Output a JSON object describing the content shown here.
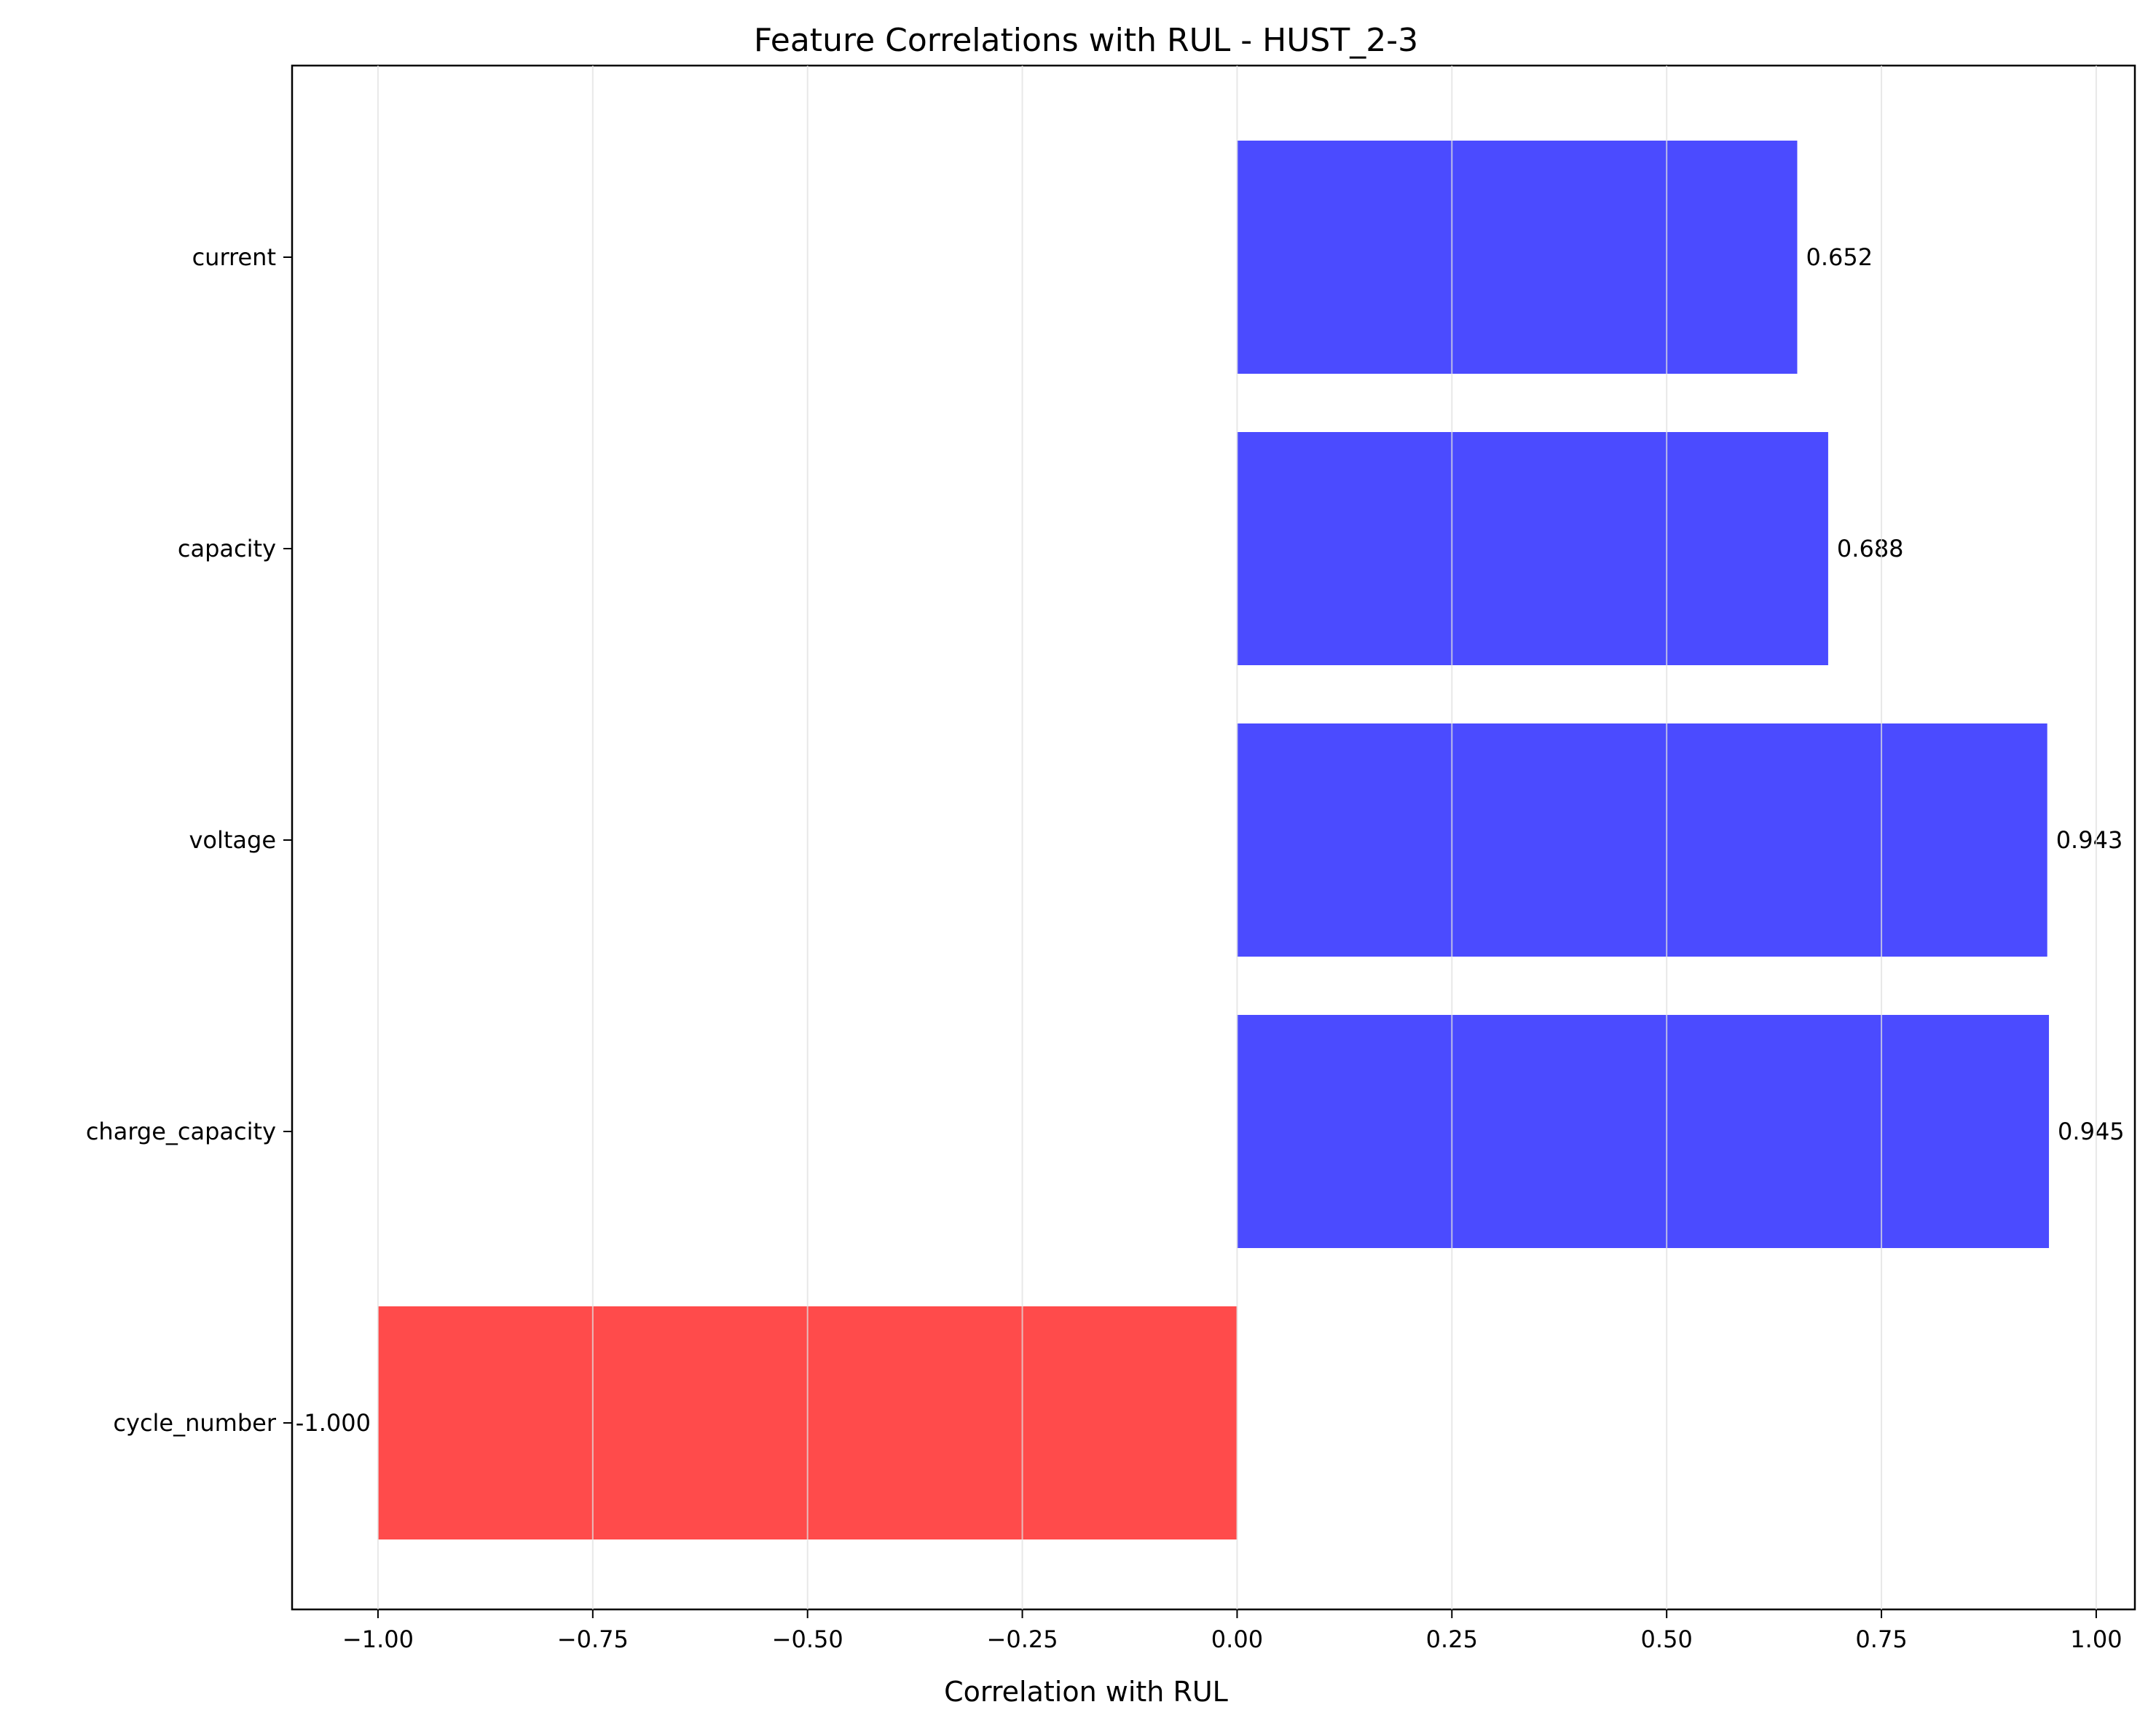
{
  "chart_data": {
    "type": "bar",
    "orientation": "horizontal",
    "title": "Feature Correlations with RUL - HUST_2-3",
    "xlabel": "Correlation with RUL",
    "ylabel": "",
    "xlim": [
      -1.1,
      1.045
    ],
    "xticks": [
      -1.0,
      -0.75,
      -0.5,
      -0.25,
      0.0,
      0.25,
      0.5,
      0.75,
      1.0
    ],
    "xtick_labels": [
      "−1.00",
      "−0.75",
      "−0.50",
      "−0.25",
      "0.00",
      "0.25",
      "0.50",
      "0.75",
      "1.00"
    ],
    "grid": "x",
    "categories": [
      "cycle_number",
      "charge_capacity",
      "voltage",
      "capacity",
      "current"
    ],
    "values": [
      -1.0,
      0.945,
      0.943,
      0.688,
      0.652
    ],
    "value_labels": [
      "-1.000",
      "0.945",
      "0.943",
      "0.688",
      "0.652"
    ],
    "colors": {
      "positive": "#4b4bff",
      "negative": "#ff4b4b",
      "grid": "#e0e0e0",
      "axis": "#000000"
    }
  }
}
